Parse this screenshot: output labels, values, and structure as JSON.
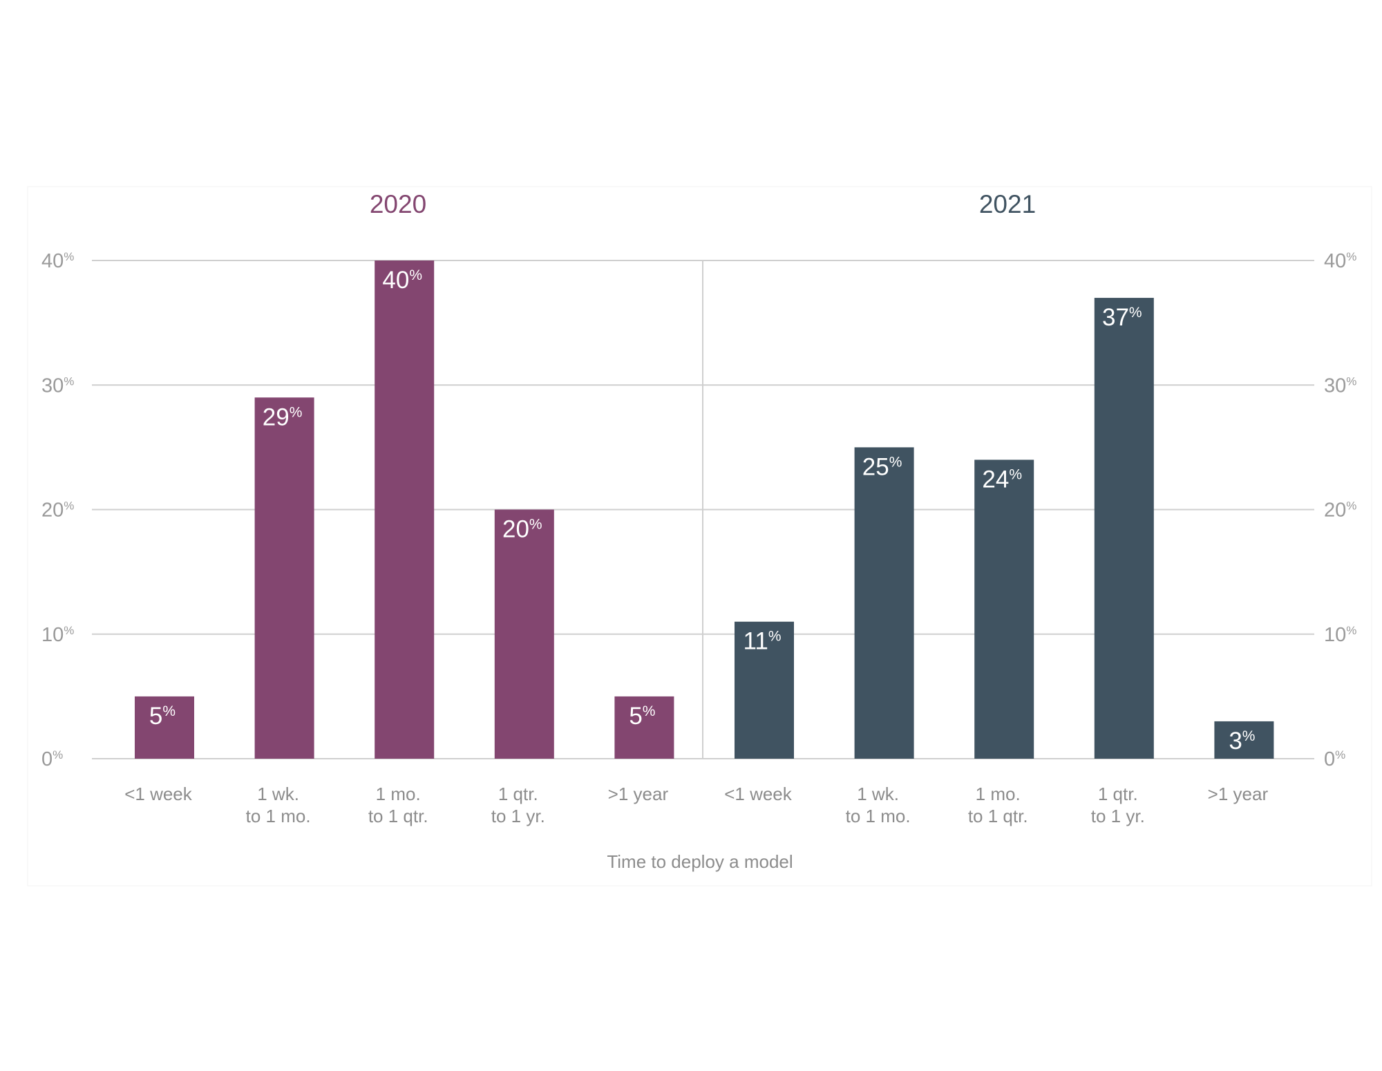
{
  "chart_data": {
    "type": "bar",
    "xlabel": "Time to deploy a model",
    "ylabel": "",
    "ylim": [
      0,
      40
    ],
    "yticks": [
      0,
      10,
      20,
      30,
      40
    ],
    "ytick_unit": "%",
    "value_unit": "%",
    "grid": true,
    "categories": [
      [
        "<1 week"
      ],
      [
        "1 wk.",
        "to 1 mo."
      ],
      [
        "1 mo.",
        "to 1 qtr."
      ],
      [
        "1 qtr.",
        "to 1 yr."
      ],
      [
        ">1 year"
      ]
    ],
    "series": [
      {
        "name": "2020",
        "color": "#834670",
        "values": [
          5,
          29,
          40,
          20,
          5
        ]
      },
      {
        "name": "2021",
        "color": "#405361",
        "values": [
          11,
          25,
          24,
          37,
          3
        ]
      }
    ]
  }
}
